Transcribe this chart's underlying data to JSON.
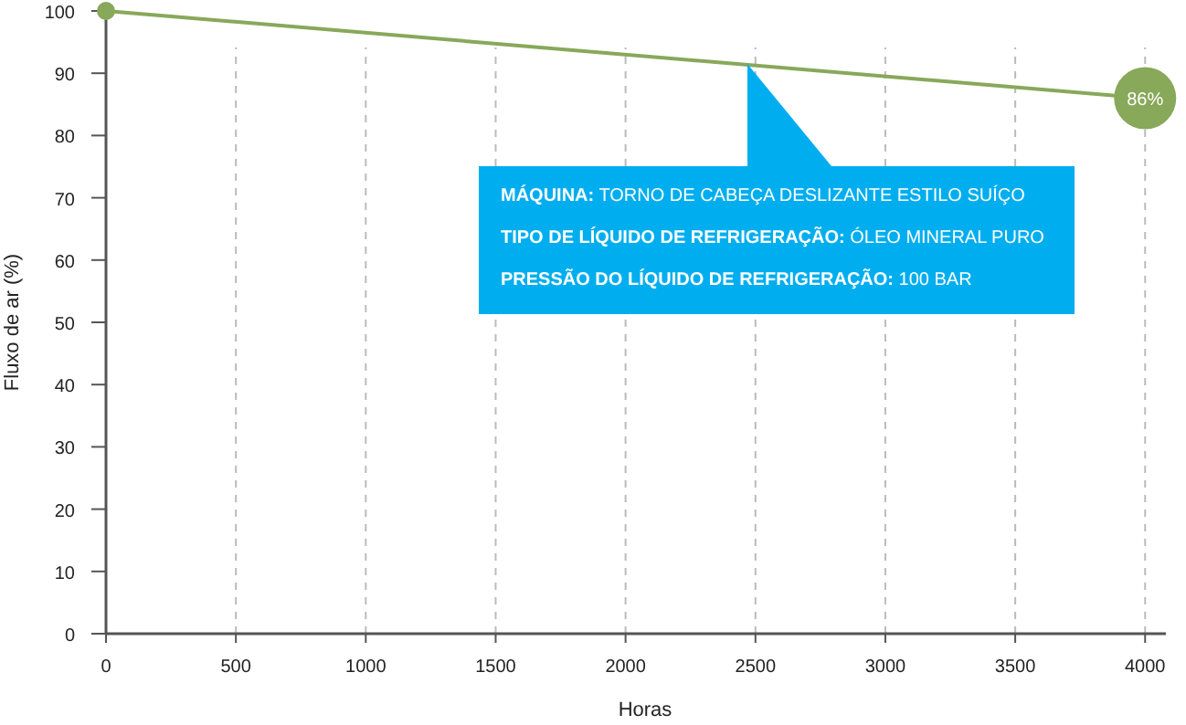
{
  "chart_data": {
    "type": "line",
    "xlabel": "Horas",
    "ylabel": "Fluxo de ar (%)",
    "x": [
      0,
      4000
    ],
    "series": [
      {
        "color": "#88a85a",
        "values": [
          100,
          86
        ],
        "value_labels": [
          null,
          "86%"
        ]
      }
    ],
    "xlim": [
      0,
      4080
    ],
    "ylim": [
      0,
      100
    ],
    "xticks": [
      0,
      500,
      1000,
      1500,
      2000,
      2500,
      3000,
      3500,
      4000
    ],
    "yticks": [
      0,
      10,
      20,
      30,
      40,
      50,
      60,
      70,
      80,
      90,
      100
    ],
    "grid": "x",
    "marker": "circle",
    "line_style": "solid",
    "annotations": [
      "MÁQUINA: TORNO DE CABEÇA DESLIZANTE ESTILO SUÍÇO",
      "TIPO DE LÍQUIDO DE REFRIGERAÇÃO: ÓLEO MINERAL PURO",
      "PRESSÃO DO LÍQUIDO DE REFRIGERAÇÃO: 100 BAR"
    ]
  }
}
